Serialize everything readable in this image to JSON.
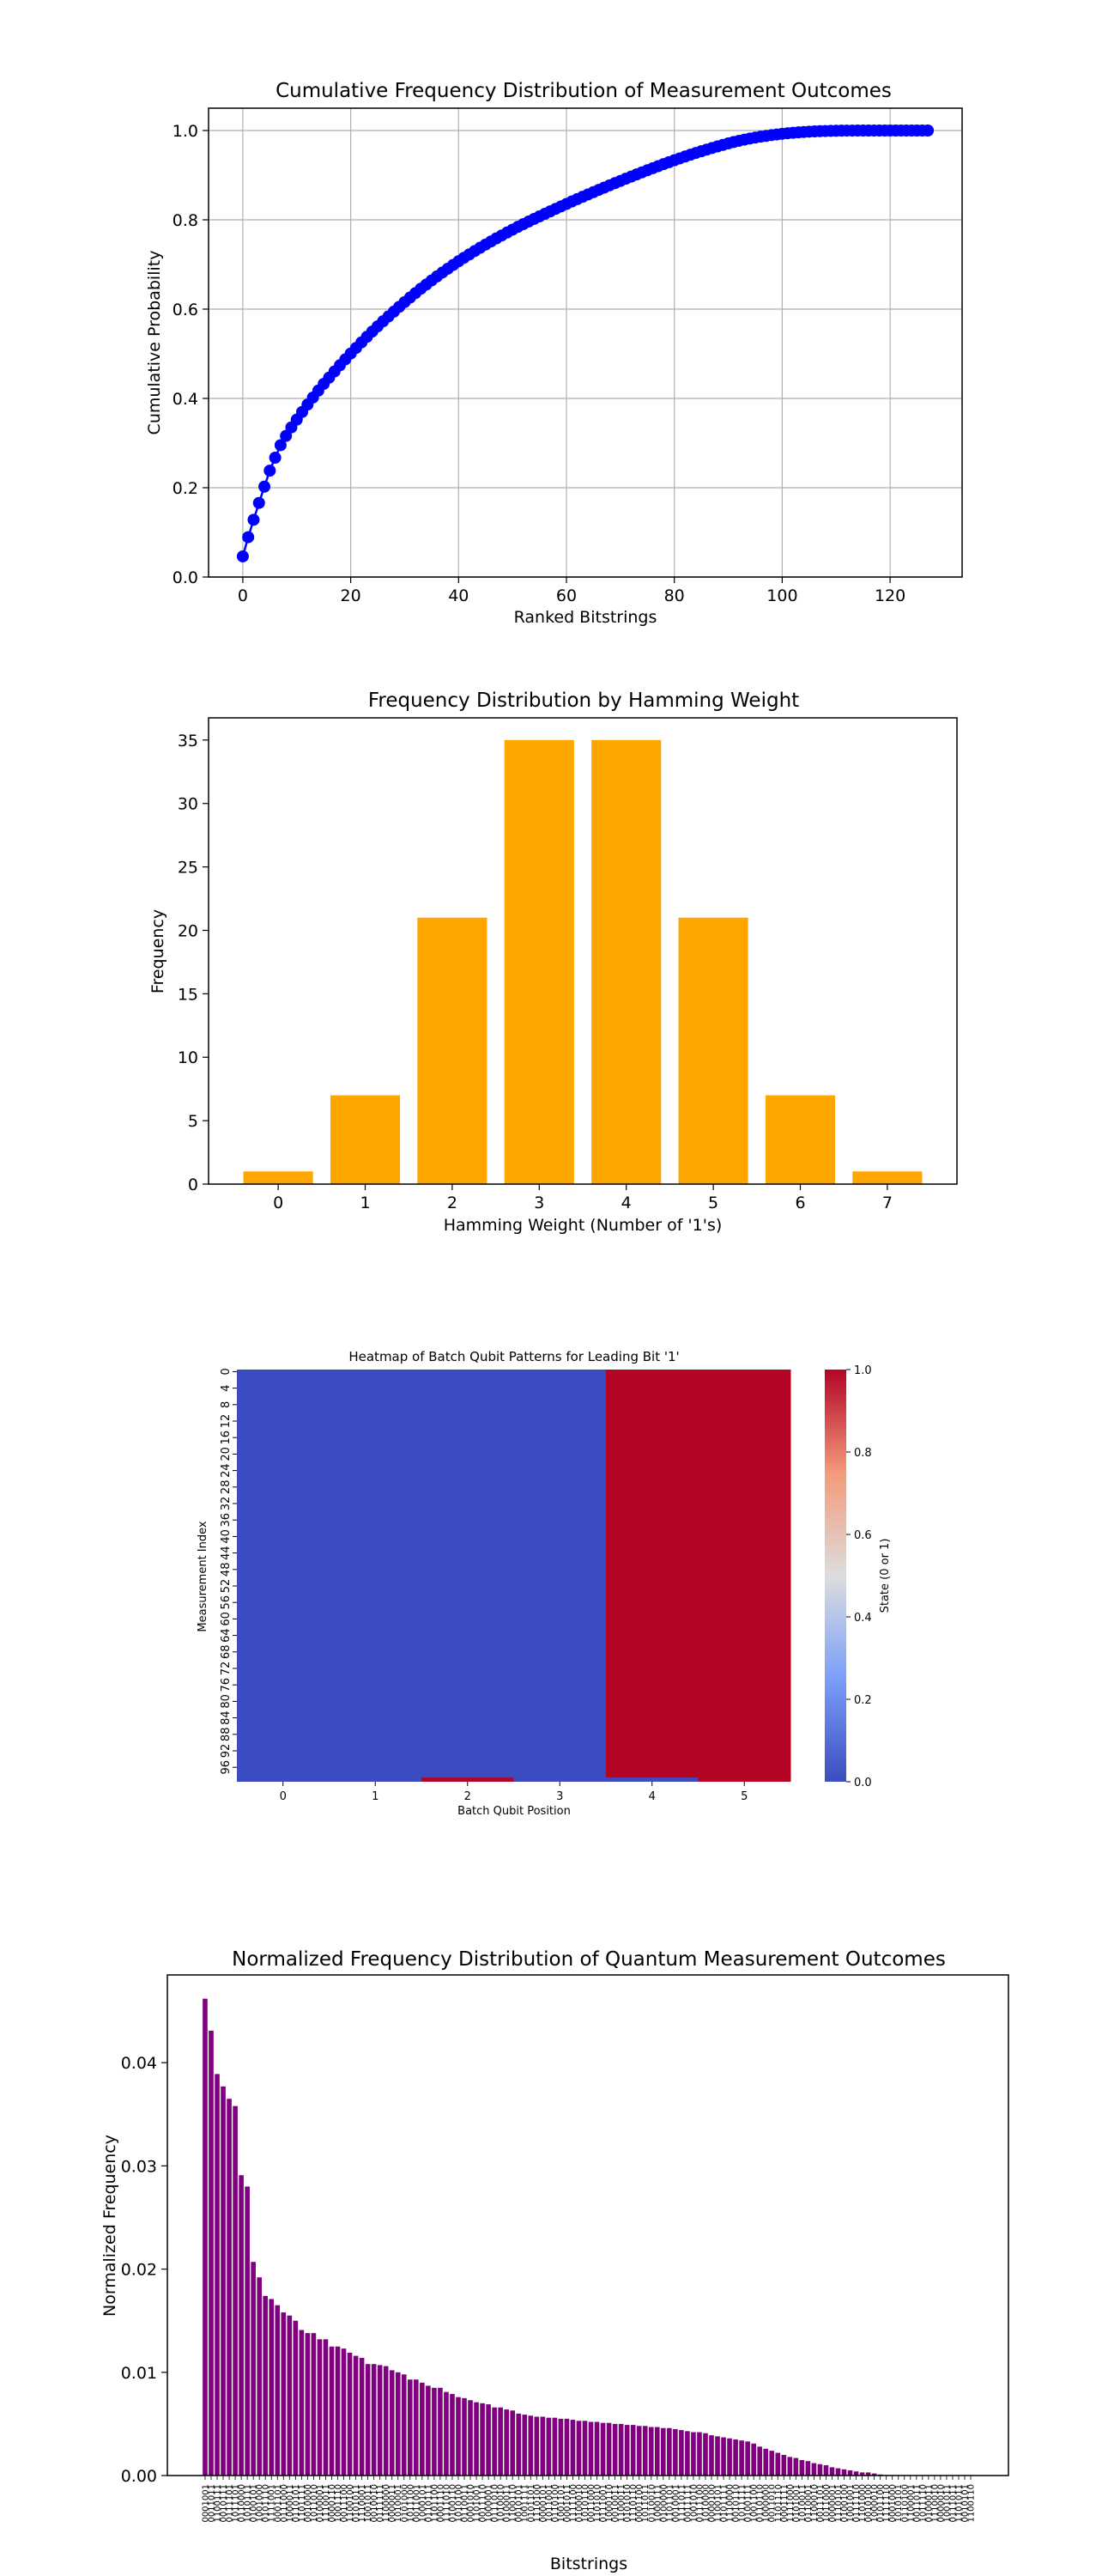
{
  "chart_data": [
    {
      "type": "line",
      "title": "Cumulative Frequency Distribution of Measurement Outcomes",
      "xlabel": "Ranked Bitstrings",
      "ylabel": "Cumulative Probability",
      "xlim": [
        -6.35,
        133.35
      ],
      "ylim": [
        0,
        1.05
      ],
      "xticks": [
        0,
        20,
        40,
        60,
        80,
        100,
        120
      ],
      "yticks": [
        0.0,
        0.2,
        0.4,
        0.6,
        0.8,
        1.0
      ],
      "ytick_labels": [
        "0.0",
        "0.2",
        "0.4",
        "0.6",
        "0.8",
        "1.0"
      ],
      "grid": true,
      "color": "#0000ff",
      "marker": "circle",
      "x": [
        0,
        1,
        2,
        3,
        4,
        5,
        6,
        7,
        8,
        9,
        10,
        11,
        12,
        13,
        14,
        15,
        16,
        17,
        18,
        19,
        20,
        21,
        22,
        23,
        24,
        25,
        26,
        27,
        28,
        29,
        30,
        31,
        32,
        33,
        34,
        35,
        36,
        37,
        38,
        39,
        40,
        41,
        42,
        43,
        44,
        45,
        46,
        47,
        48,
        49,
        50,
        51,
        52,
        53,
        54,
        55,
        56,
        57,
        58,
        59,
        60,
        61,
        62,
        63,
        64,
        65,
        66,
        67,
        68,
        69,
        70,
        71,
        72,
        73,
        74,
        75,
        76,
        77,
        78,
        79,
        80,
        81,
        82,
        83,
        84,
        85,
        86,
        87,
        88,
        89,
        90,
        91,
        92,
        93,
        94,
        95,
        96,
        97,
        98,
        99,
        100,
        101,
        102,
        103,
        104,
        105,
        106,
        107,
        108,
        109,
        110,
        111,
        112,
        113,
        114,
        115,
        116,
        117,
        118,
        119,
        120,
        121,
        122,
        123,
        124,
        125,
        126,
        127
      ],
      "y": [
        0.0462,
        0.0893,
        0.1282,
        0.1659,
        0.2024,
        0.2382,
        0.2673,
        0.2953,
        0.316,
        0.3352,
        0.3526,
        0.3697,
        0.3862,
        0.402,
        0.4175,
        0.4325,
        0.4466,
        0.4604,
        0.4742,
        0.4874,
        0.5006,
        0.5131,
        0.5256,
        0.5379,
        0.5498,
        0.5614,
        0.5728,
        0.5836,
        0.5944,
        0.6051,
        0.6157,
        0.6259,
        0.6359,
        0.6457,
        0.655,
        0.6643,
        0.6733,
        0.682,
        0.6905,
        0.699,
        0.7071,
        0.715,
        0.7226,
        0.7301,
        0.7374,
        0.7445,
        0.7515,
        0.7584,
        0.765,
        0.7716,
        0.778,
        0.7843,
        0.7903,
        0.7962,
        0.802,
        0.8077,
        0.8134,
        0.819,
        0.8246,
        0.8301,
        0.8356,
        0.841,
        0.8463,
        0.8516,
        0.8568,
        0.862,
        0.8671,
        0.8722,
        0.8772,
        0.8822,
        0.8871,
        0.892,
        0.8968,
        0.9016,
        0.9063,
        0.911,
        0.9156,
        0.9202,
        0.9247,
        0.9291,
        0.9334,
        0.9376,
        0.9418,
        0.9459,
        0.9498,
        0.9536,
        0.9573,
        0.9609,
        0.9644,
        0.9678,
        0.9711,
        0.9742,
        0.977,
        0.9796,
        0.982,
        0.9842,
        0.9862,
        0.988,
        0.9897,
        0.9912,
        0.9926,
        0.9938,
        0.9949,
        0.9959,
        0.9967,
        0.9974,
        0.998,
        0.9985,
        0.9989,
        0.9992,
        0.9995,
        0.9997,
        0.9998,
        0.99985,
        0.9999,
        0.99992,
        0.99994,
        0.99995,
        0.99996,
        0.99997,
        0.99998,
        0.99998,
        0.99999,
        0.99999,
        0.99999,
        1.0,
        1.0,
        1.0
      ]
    },
    {
      "type": "bar",
      "title": "Frequency Distribution by Hamming Weight",
      "xlabel": "Hamming Weight (Number of '1's)",
      "ylabel": "Frequency",
      "categories": [
        "0",
        "1",
        "2",
        "3",
        "4",
        "5",
        "6",
        "7"
      ],
      "values": [
        1,
        7,
        21,
        35,
        35,
        21,
        7,
        1
      ],
      "xlim": [
        -0.8,
        7.8
      ],
      "ylim": [
        0,
        36.75
      ],
      "yticks": [
        0,
        5,
        10,
        15,
        20,
        25,
        30,
        35
      ],
      "grid": false,
      "color": "#ffa500"
    },
    {
      "type": "heatmap",
      "title": "Heatmap of Batch Qubit Patterns for Leading Bit '1'",
      "xlabel": "Batch Qubit Position",
      "ylabel": "Measurement Index",
      "x_categories": [
        "0",
        "1",
        "2",
        "3",
        "4",
        "5"
      ],
      "y_tick_labels": [
        "0",
        "4",
        "8",
        "12",
        "16",
        "20",
        "24",
        "28",
        "32",
        "36",
        "40",
        "44",
        "48",
        "52",
        "56",
        "60",
        "64",
        "68",
        "72",
        "76",
        "80",
        "84",
        "88",
        "92",
        "96"
      ],
      "n_rows": 100,
      "row_pattern": [
        0,
        0,
        0,
        0,
        1,
        1
      ],
      "last_row": [
        0,
        0,
        1,
        0,
        0,
        1
      ],
      "colorbar": {
        "label": "State (0 or 1)",
        "ticks": [
          "0.0",
          "0.2",
          "0.4",
          "0.6",
          "0.8",
          "1.0"
        ],
        "low_color": "#3b4cc0",
        "mid_color": "#dddddd",
        "high_color": "#b40426"
      }
    },
    {
      "type": "bar",
      "title": "Normalized Frequency Distribution of Quantum Measurement Outcomes",
      "xlabel": "Bitstrings",
      "ylabel": "Normalized Frequency",
      "ylim": [
        0,
        0.0485
      ],
      "yticks": [
        0.0,
        0.01,
        0.02,
        0.03,
        0.04
      ],
      "ytick_labels": [
        "0.00",
        "0.01",
        "0.02",
        "0.03",
        "0.04"
      ],
      "color": "#800080",
      "categories": [
        "0001001",
        "0011011",
        "1100111",
        "0010111",
        "0111101",
        "1011101",
        "0110000",
        "1010111",
        "0100101",
        "1001000",
        "0101110",
        "1111001",
        "0001101",
        "0111000",
        "1000011",
        "0110101",
        "1101111",
        "0010000",
        "1011010",
        "0100001",
        "1110011",
        "0000110",
        "1001110",
        "0011100",
        "1100100",
        "0101011",
        "1110001",
        "1001011",
        "0010010",
        "0111111",
        "1100000",
        "0000011",
        "1010001",
        "0101000",
        "1011100",
        "0011001",
        "1000101",
        "0110111",
        "1101100",
        "0001110",
        "1111010",
        "0100110",
        "1010100",
        "0110011",
        "0001010",
        "1101001",
        "0011110",
        "1000001",
        "0111010",
        "1010010",
        "0100011",
        "1100110",
        "0010101",
        "1001111",
        "0101101",
        "1110100",
        "0000101",
        "1011001",
        "0110100",
        "1001101",
        "0001011",
        "1111100",
        "0100010",
        "1010110",
        "0011000",
        "1101010",
        "0111001",
        "1000110",
        "0010011",
        "1100011",
        "0101010",
        "1110110",
        "0001100",
        "1011011",
        "0110010",
        "1000111",
        "0100000",
        "1101101",
        "0010001",
        "1111011",
        "0011111",
        "1001010",
        "0111100",
        "1010000",
        "0000100",
        "1100101",
        "0101111",
        "1110000",
        "0010110",
        "1011111",
        "0100111",
        "1001100",
        "0110110",
        "1000000",
        "0011010",
        "1101110",
        "0001111",
        "1111000",
        "0101001",
        "1010011",
        "0110001",
        "1100010",
        "0011101",
        "1011000",
        "0000001",
        "1110101",
        "0100100",
        "1001001",
        "0111110",
        "1101000",
        "0010100",
        "1000010",
        "0101100",
        "1111110",
        "0001000",
        "1010101",
        "0110100",
        "1100001",
        "0011011",
        "1011110",
        "0100011",
        "1110010",
        "0000010",
        "1001011",
        "0111011",
        "1101011",
        "0010101",
        "1100110"
      ],
      "values": [
        0.0462,
        0.0431,
        0.0389,
        0.0377,
        0.0365,
        0.0358,
        0.0291,
        0.028,
        0.0207,
        0.0192,
        0.0174,
        0.0171,
        0.0165,
        0.0158,
        0.0155,
        0.015,
        0.0141,
        0.0138,
        0.0138,
        0.0132,
        0.0132,
        0.0125,
        0.0125,
        0.0123,
        0.0119,
        0.0116,
        0.0114,
        0.0108,
        0.0108,
        0.0107,
        0.0106,
        0.0102,
        0.01,
        0.0098,
        0.0093,
        0.0093,
        0.009,
        0.0087,
        0.0085,
        0.0085,
        0.0081,
        0.0079,
        0.0076,
        0.0075,
        0.0073,
        0.0071,
        0.007,
        0.0069,
        0.0066,
        0.0066,
        0.0064,
        0.0063,
        0.006,
        0.0059,
        0.0058,
        0.0057,
        0.0057,
        0.0056,
        0.0056,
        0.0055,
        0.0055,
        0.0054,
        0.0053,
        0.0053,
        0.0052,
        0.0052,
        0.0051,
        0.0051,
        0.005,
        0.005,
        0.0049,
        0.0049,
        0.0048,
        0.0048,
        0.0047,
        0.0047,
        0.0046,
        0.0046,
        0.0045,
        0.0044,
        0.0043,
        0.0042,
        0.0042,
        0.0041,
        0.0039,
        0.0038,
        0.0037,
        0.0036,
        0.0035,
        0.0034,
        0.0033,
        0.0031,
        0.0028,
        0.0026,
        0.0024,
        0.0022,
        0.002,
        0.0018,
        0.0017,
        0.0015,
        0.0014,
        0.0012,
        0.0011,
        0.001,
        0.0008,
        0.0007,
        0.0006,
        0.0005,
        0.0004,
        0.0003,
        0.0003,
        0.0002,
        0.0001,
        5e-05,
        5e-05,
        2e-05,
        2e-05,
        1e-05,
        1e-05,
        1e-05,
        1e-05,
        0.0,
        1e-05,
        0.0,
        0.0,
        0.0,
        0.0,
        0.0
      ]
    }
  ]
}
